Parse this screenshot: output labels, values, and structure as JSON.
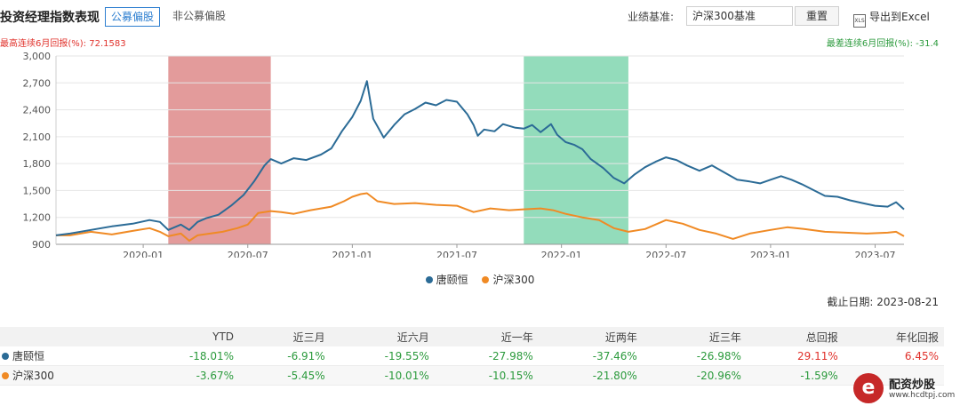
{
  "header": {
    "title": "投资经理指数表现",
    "tabs": [
      {
        "label": "公募偏股"
      },
      {
        "label": "非公募偏股"
      }
    ],
    "benchmark_label": "业绩基准:",
    "benchmark_value": "沪深300基准",
    "reset_label": "重置",
    "excel_icon_text": "XLS",
    "export_label": "导出到Excel"
  },
  "stats": {
    "best_6m": "最高连续6月回报(%): 72.1583",
    "worst_6m": "最差连续6月回报(%): -31.4"
  },
  "chart_data": {
    "type": "line",
    "ylim": [
      900,
      3000
    ],
    "yticks": [
      "900",
      "1,200",
      "1,500",
      "1,800",
      "2,100",
      "2,400",
      "2,700",
      "3,000"
    ],
    "x_range_years": [
      2019.583,
      2023.638
    ],
    "xticks": [
      {
        "label": "2020-01",
        "year": 2020.0
      },
      {
        "label": "2020-07",
        "year": 2020.5
      },
      {
        "label": "2021-01",
        "year": 2021.0
      },
      {
        "label": "2021-07",
        "year": 2021.5
      },
      {
        "label": "2022-01",
        "year": 2022.0
      },
      {
        "label": "2022-07",
        "year": 2022.5
      },
      {
        "label": "2023-01",
        "year": 2023.0
      },
      {
        "label": "2023-07",
        "year": 2023.5
      }
    ],
    "highlights": [
      {
        "from": 2020.12,
        "to": 2020.61,
        "color": "#d97a7a"
      },
      {
        "from": 2021.82,
        "to": 2022.32,
        "color": "#6fd0a4"
      }
    ],
    "series": [
      {
        "name": "唐颐恒",
        "color": "#2b6b96",
        "points": [
          [
            2019.583,
            1000
          ],
          [
            2019.65,
            1020
          ],
          [
            2019.75,
            1060
          ],
          [
            2019.85,
            1100
          ],
          [
            2019.95,
            1130
          ],
          [
            2020.03,
            1170
          ],
          [
            2020.08,
            1150
          ],
          [
            2020.12,
            1060
          ],
          [
            2020.18,
            1120
          ],
          [
            2020.22,
            1060
          ],
          [
            2020.26,
            1150
          ],
          [
            2020.3,
            1190
          ],
          [
            2020.36,
            1230
          ],
          [
            2020.42,
            1330
          ],
          [
            2020.48,
            1450
          ],
          [
            2020.53,
            1600
          ],
          [
            2020.58,
            1780
          ],
          [
            2020.61,
            1850
          ],
          [
            2020.66,
            1800
          ],
          [
            2020.72,
            1860
          ],
          [
            2020.78,
            1840
          ],
          [
            2020.85,
            1900
          ],
          [
            2020.9,
            1970
          ],
          [
            2020.95,
            2160
          ],
          [
            2021.0,
            2320
          ],
          [
            2021.04,
            2500
          ],
          [
            2021.07,
            2720
          ],
          [
            2021.1,
            2300
          ],
          [
            2021.15,
            2090
          ],
          [
            2021.2,
            2230
          ],
          [
            2021.25,
            2350
          ],
          [
            2021.3,
            2410
          ],
          [
            2021.35,
            2480
          ],
          [
            2021.4,
            2450
          ],
          [
            2021.45,
            2510
          ],
          [
            2021.5,
            2490
          ],
          [
            2021.55,
            2350
          ],
          [
            2021.58,
            2230
          ],
          [
            2021.6,
            2110
          ],
          [
            2021.63,
            2180
          ],
          [
            2021.68,
            2160
          ],
          [
            2021.72,
            2240
          ],
          [
            2021.78,
            2200
          ],
          [
            2021.82,
            2190
          ],
          [
            2021.86,
            2230
          ],
          [
            2021.9,
            2150
          ],
          [
            2021.95,
            2240
          ],
          [
            2021.98,
            2120
          ],
          [
            2022.02,
            2040
          ],
          [
            2022.06,
            2010
          ],
          [
            2022.1,
            1960
          ],
          [
            2022.14,
            1850
          ],
          [
            2022.2,
            1750
          ],
          [
            2022.25,
            1640
          ],
          [
            2022.3,
            1580
          ],
          [
            2022.35,
            1680
          ],
          [
            2022.4,
            1760
          ],
          [
            2022.45,
            1820
          ],
          [
            2022.5,
            1870
          ],
          [
            2022.55,
            1840
          ],
          [
            2022.6,
            1780
          ],
          [
            2022.66,
            1720
          ],
          [
            2022.72,
            1780
          ],
          [
            2022.78,
            1700
          ],
          [
            2022.84,
            1620
          ],
          [
            2022.9,
            1600
          ],
          [
            2022.95,
            1580
          ],
          [
            2023.0,
            1620
          ],
          [
            2023.05,
            1660
          ],
          [
            2023.1,
            1620
          ],
          [
            2023.15,
            1570
          ],
          [
            2023.2,
            1510
          ],
          [
            2023.26,
            1440
          ],
          [
            2023.32,
            1430
          ],
          [
            2023.38,
            1390
          ],
          [
            2023.44,
            1360
          ],
          [
            2023.5,
            1330
          ],
          [
            2023.56,
            1320
          ],
          [
            2023.6,
            1370
          ],
          [
            2023.638,
            1290
          ]
        ]
      },
      {
        "name": "沪深300",
        "color": "#f08a24",
        "points": [
          [
            2019.583,
            1000
          ],
          [
            2019.65,
            1000
          ],
          [
            2019.75,
            1040
          ],
          [
            2019.85,
            1010
          ],
          [
            2019.95,
            1050
          ],
          [
            2020.03,
            1080
          ],
          [
            2020.08,
            1040
          ],
          [
            2020.12,
            990
          ],
          [
            2020.18,
            1020
          ],
          [
            2020.22,
            940
          ],
          [
            2020.26,
            1000
          ],
          [
            2020.32,
            1020
          ],
          [
            2020.38,
            1040
          ],
          [
            2020.45,
            1080
          ],
          [
            2020.5,
            1120
          ],
          [
            2020.55,
            1250
          ],
          [
            2020.61,
            1270
          ],
          [
            2020.66,
            1260
          ],
          [
            2020.72,
            1240
          ],
          [
            2020.8,
            1280
          ],
          [
            2020.9,
            1320
          ],
          [
            2020.96,
            1380
          ],
          [
            2021.0,
            1430
          ],
          [
            2021.04,
            1460
          ],
          [
            2021.07,
            1470
          ],
          [
            2021.12,
            1380
          ],
          [
            2021.2,
            1350
          ],
          [
            2021.3,
            1360
          ],
          [
            2021.4,
            1340
          ],
          [
            2021.5,
            1330
          ],
          [
            2021.58,
            1260
          ],
          [
            2021.66,
            1300
          ],
          [
            2021.75,
            1280
          ],
          [
            2021.82,
            1290
          ],
          [
            2021.9,
            1300
          ],
          [
            2021.96,
            1280
          ],
          [
            2022.02,
            1240
          ],
          [
            2022.1,
            1200
          ],
          [
            2022.18,
            1170
          ],
          [
            2022.25,
            1080
          ],
          [
            2022.32,
            1040
          ],
          [
            2022.4,
            1070
          ],
          [
            2022.5,
            1170
          ],
          [
            2022.58,
            1130
          ],
          [
            2022.66,
            1060
          ],
          [
            2022.74,
            1020
          ],
          [
            2022.82,
            960
          ],
          [
            2022.9,
            1020
          ],
          [
            2023.0,
            1060
          ],
          [
            2023.08,
            1090
          ],
          [
            2023.16,
            1070
          ],
          [
            2023.26,
            1040
          ],
          [
            2023.36,
            1030
          ],
          [
            2023.46,
            1020
          ],
          [
            2023.56,
            1030
          ],
          [
            2023.6,
            1040
          ],
          [
            2023.638,
            990
          ]
        ]
      }
    ]
  },
  "as_of": "截止日期: 2023-08-21",
  "table": {
    "headers": [
      "",
      "YTD",
      "近三月",
      "近六月",
      "近一年",
      "近两年",
      "近三年",
      "总回报",
      "年化回报"
    ],
    "rows": [
      {
        "name": "唐颐恒",
        "dot_color": "#2b6b96",
        "values": [
          "-18.01%",
          "-6.91%",
          "-19.55%",
          "-27.98%",
          "-37.46%",
          "-26.98%",
          "29.11%",
          "6.45%"
        ]
      },
      {
        "name": "沪深300",
        "dot_color": "#f08a24",
        "values": [
          "-3.67%",
          "-5.45%",
          "-10.01%",
          "-10.15%",
          "-21.80%",
          "-20.96%",
          "-1.59%",
          ""
        ]
      }
    ]
  },
  "watermark": {
    "logo_letter": "e",
    "title": "配资炒股",
    "url": "www.hcdtpj.com"
  }
}
